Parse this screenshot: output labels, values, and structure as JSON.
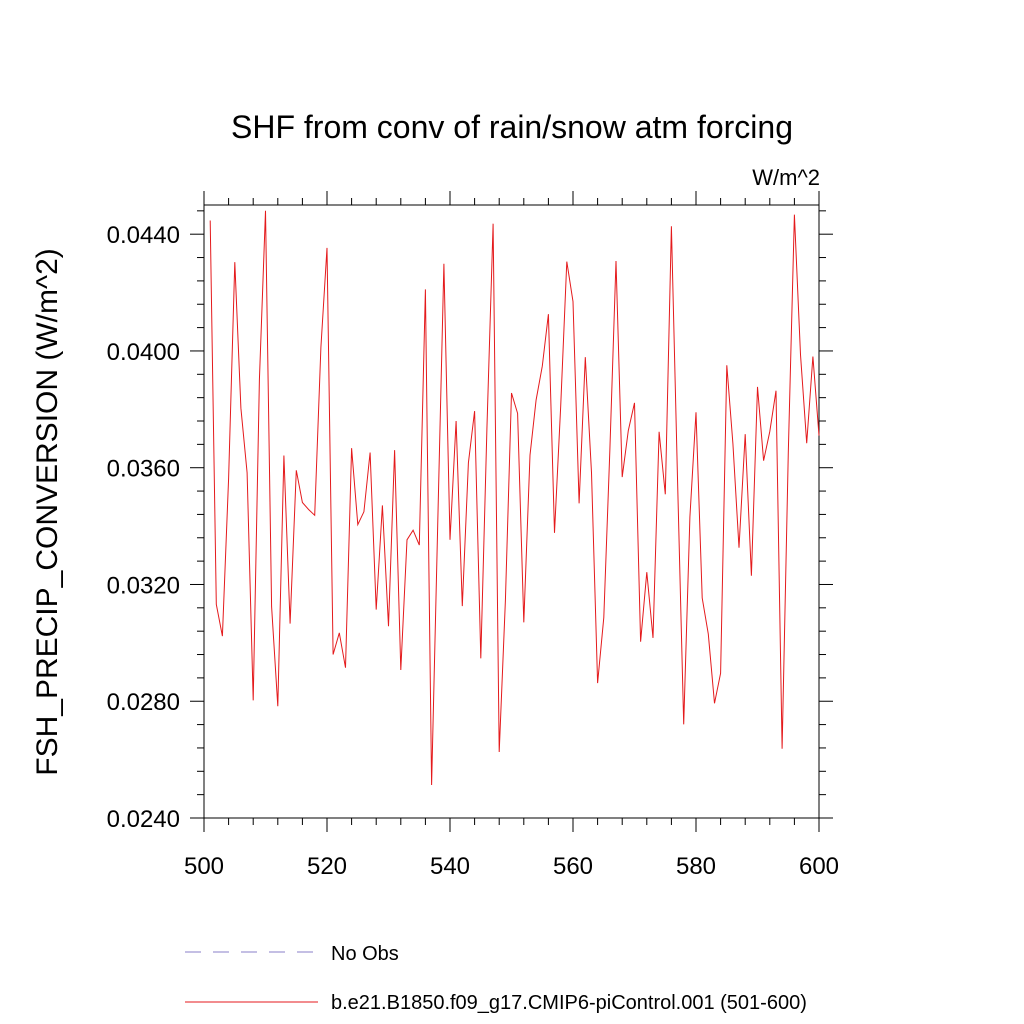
{
  "chart_data": {
    "type": "line",
    "title": "SHF from conv of rain/snow atm forcing",
    "units_label": "W/m^2",
    "ylabel": "FSH_PRECIP_CONVERSION  (W/m^2)",
    "xlabel": "",
    "xlim": [
      500,
      600
    ],
    "ylim": [
      0.024,
      0.045
    ],
    "xticks": [
      500,
      520,
      540,
      560,
      580,
      600
    ],
    "xtick_labels": [
      "500",
      "520",
      "540",
      "560",
      "580",
      "600"
    ],
    "yticks": [
      0.024,
      0.028,
      0.032,
      0.036,
      0.04,
      0.044
    ],
    "ytick_labels": [
      "0.0240",
      "0.0280",
      "0.0320",
      "0.0360",
      "0.0400",
      "0.0440"
    ],
    "grid": false,
    "legend": [
      {
        "label": "No Obs",
        "color": "#8a7fc8",
        "style": "dashed"
      },
      {
        "label": "b.e21.B1850.f09_g17.CMIP6-piControl.001 (501-600)",
        "color": "#e41a1c",
        "style": "solid"
      }
    ],
    "series": [
      {
        "color": "#e41a1c",
        "x": [
          501,
          502,
          503,
          504,
          505,
          506,
          507,
          508,
          509,
          510,
          511,
          512,
          513,
          514,
          515,
          516,
          517,
          518,
          519,
          520,
          521,
          522,
          523,
          524,
          525,
          526,
          527,
          528,
          529,
          530,
          531,
          532,
          533,
          534,
          535,
          536,
          537,
          538,
          539,
          540,
          541,
          542,
          543,
          544,
          545,
          546,
          547,
          548,
          549,
          550,
          551,
          552,
          553,
          554,
          555,
          556,
          557,
          558,
          559,
          560,
          561,
          562,
          563,
          564,
          565,
          566,
          567,
          568,
          569,
          570,
          571,
          572,
          573,
          574,
          575,
          576,
          577,
          578,
          579,
          580,
          581,
          582,
          583,
          584,
          585,
          586,
          587,
          588,
          589,
          590,
          591,
          592,
          593,
          594,
          595,
          596,
          597,
          598,
          599,
          600
        ],
        "values": [
          0.04447,
          0.03132,
          0.03023,
          0.03563,
          0.04304,
          0.03804,
          0.03583,
          0.02803,
          0.03901,
          0.0448,
          0.03124,
          0.02783,
          0.03642,
          0.03066,
          0.03591,
          0.03481,
          0.03457,
          0.03437,
          0.04012,
          0.04353,
          0.0296,
          0.03034,
          0.02915,
          0.03667,
          0.03405,
          0.03449,
          0.03652,
          0.03114,
          0.03471,
          0.03057,
          0.0366,
          0.02907,
          0.03353,
          0.03386,
          0.03335,
          0.04211,
          0.02513,
          0.03403,
          0.04299,
          0.03353,
          0.0376,
          0.03126,
          0.03617,
          0.03794,
          0.02947,
          0.03732,
          0.04436,
          0.02626,
          0.03145,
          0.03856,
          0.03786,
          0.0307,
          0.03643,
          0.03832,
          0.03948,
          0.04126,
          0.03377,
          0.03811,
          0.04306,
          0.04169,
          0.03478,
          0.03979,
          0.03583,
          0.02862,
          0.03087,
          0.03664,
          0.04308,
          0.03568,
          0.03727,
          0.03822,
          0.03004,
          0.03242,
          0.03017,
          0.03723,
          0.03509,
          0.04427,
          0.03564,
          0.02721,
          0.03431,
          0.0379,
          0.03154,
          0.0303,
          0.02793,
          0.02896,
          0.03951,
          0.03683,
          0.03326,
          0.03715,
          0.0323,
          0.03877,
          0.03624,
          0.03724,
          0.03864,
          0.02637,
          0.03653,
          0.04467,
          0.03987,
          0.03684,
          0.03981,
          0.0371
        ]
      }
    ]
  }
}
